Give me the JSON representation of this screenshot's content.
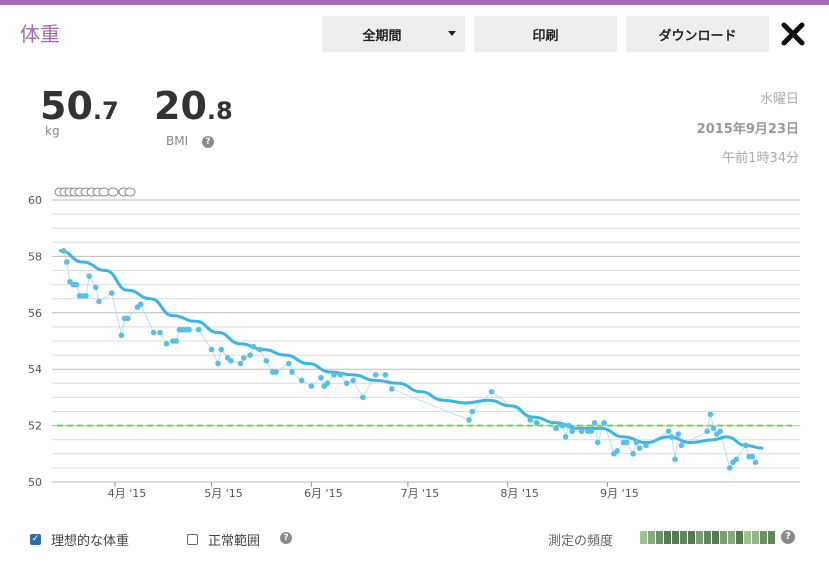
{
  "header": {
    "title": "体重",
    "period_label": "全期間",
    "print_label": "印刷",
    "download_label": "ダウンロード"
  },
  "metrics": {
    "weight_int": "50",
    "weight_dec": ".7",
    "weight_unit": "kg",
    "bmi_int": "20",
    "bmi_dec": ".8",
    "bmi_label": "BMI"
  },
  "date": {
    "weekday": "水曜日",
    "date": "2015年9月23日",
    "time": "午前1時34分"
  },
  "colors": {
    "accent": "#a36bb7",
    "trend": "#3db4e6",
    "points": "#55c0ea",
    "ideal_line": "#7dcf5a"
  },
  "chart_data": {
    "type": "line",
    "ylim": [
      50,
      60
    ],
    "yticks": [
      "60",
      "58",
      "56",
      "54",
      "52",
      "50"
    ],
    "months": [
      "4月 '15",
      "5月 '15",
      "6月 '15",
      "7月 '15",
      "8月 '15",
      "9月 '15"
    ],
    "ideal_weight": 52,
    "measurements": [
      [
        "2015-03-16",
        58.2
      ],
      [
        "2015-03-17",
        57.8
      ],
      [
        "2015-03-18",
        57.1
      ],
      [
        "2015-03-19",
        57.0
      ],
      [
        "2015-03-20",
        57.0
      ],
      [
        "2015-03-21",
        56.6
      ],
      [
        "2015-03-22",
        56.6
      ],
      [
        "2015-03-23",
        56.6
      ],
      [
        "2015-03-24",
        57.3
      ],
      [
        "2015-03-26",
        56.9
      ],
      [
        "2015-03-27",
        56.4
      ],
      [
        "2015-03-31",
        56.7
      ],
      [
        "2015-04-03",
        55.2
      ],
      [
        "2015-04-04",
        55.8
      ],
      [
        "2015-04-05",
        55.8
      ],
      [
        "2015-04-08",
        56.2
      ],
      [
        "2015-04-09",
        56.3
      ],
      [
        "2015-04-13",
        55.3
      ],
      [
        "2015-04-15",
        55.3
      ],
      [
        "2015-04-17",
        54.9
      ],
      [
        "2015-04-19",
        55.0
      ],
      [
        "2015-04-20",
        55.0
      ],
      [
        "2015-04-21",
        55.4
      ],
      [
        "2015-04-22",
        55.4
      ],
      [
        "2015-04-23",
        55.4
      ],
      [
        "2015-04-24",
        55.4
      ],
      [
        "2015-04-27",
        55.4
      ],
      [
        "2015-05-01",
        54.7
      ],
      [
        "2015-05-03",
        54.2
      ],
      [
        "2015-05-04",
        54.7
      ],
      [
        "2015-05-06",
        54.4
      ],
      [
        "2015-05-07",
        54.3
      ],
      [
        "2015-05-10",
        54.2
      ],
      [
        "2015-05-11",
        54.4
      ],
      [
        "2015-05-13",
        54.5
      ],
      [
        "2015-05-14",
        54.8
      ],
      [
        "2015-05-16",
        54.7
      ],
      [
        "2015-05-18",
        54.3
      ],
      [
        "2015-05-20",
        53.9
      ],
      [
        "2015-05-21",
        53.9
      ],
      [
        "2015-05-25",
        54.2
      ],
      [
        "2015-05-26",
        53.9
      ],
      [
        "2015-05-29",
        53.6
      ],
      [
        "2015-06-01",
        53.4
      ],
      [
        "2015-06-04",
        53.7
      ],
      [
        "2015-06-05",
        53.4
      ],
      [
        "2015-06-06",
        53.5
      ],
      [
        "2015-06-08",
        53.8
      ],
      [
        "2015-06-10",
        53.8
      ],
      [
        "2015-06-12",
        53.5
      ],
      [
        "2015-06-14",
        53.6
      ],
      [
        "2015-06-17",
        53.0
      ],
      [
        "2015-06-21",
        53.8
      ],
      [
        "2015-06-24",
        53.8
      ],
      [
        "2015-06-26",
        53.3
      ],
      [
        "2015-07-20",
        52.2
      ],
      [
        "2015-07-21",
        52.5
      ],
      [
        "2015-07-27",
        53.2
      ],
      [
        "2015-08-08",
        52.2
      ],
      [
        "2015-08-10",
        52.1
      ],
      [
        "2015-08-16",
        51.9
      ],
      [
        "2015-08-18",
        52.0
      ],
      [
        "2015-08-19",
        51.6
      ],
      [
        "2015-08-20",
        52.0
      ],
      [
        "2015-08-21",
        51.8
      ],
      [
        "2015-08-24",
        51.8
      ],
      [
        "2015-08-26",
        51.8
      ],
      [
        "2015-08-27",
        51.8
      ],
      [
        "2015-08-28",
        52.1
      ],
      [
        "2015-08-29",
        51.4
      ],
      [
        "2015-08-31",
        52.1
      ],
      [
        "2015-09-03",
        51.0
      ],
      [
        "2015-09-04",
        51.1
      ],
      [
        "2015-09-06",
        51.4
      ],
      [
        "2015-09-07",
        51.4
      ],
      [
        "2015-09-09",
        51.0
      ],
      [
        "2015-09-10",
        51.4
      ],
      [
        "2015-09-11",
        51.2
      ],
      [
        "2015-09-13",
        51.3
      ],
      [
        "2015-09-20",
        51.8
      ],
      [
        "2015-09-21",
        51.6
      ],
      [
        "2015-09-22",
        50.8
      ],
      [
        "2015-09-23",
        51.7
      ],
      [
        "2015-09-24",
        51.3
      ],
      [
        "2015-10-02",
        51.8
      ],
      [
        "2015-10-03",
        52.4
      ],
      [
        "2015-10-04",
        51.9
      ],
      [
        "2015-10-05",
        51.7
      ],
      [
        "2015-10-06",
        51.8
      ],
      [
        "2015-10-09",
        50.5
      ],
      [
        "2015-10-10",
        50.7
      ],
      [
        "2015-10-11",
        50.8
      ],
      [
        "2015-10-14",
        51.3
      ],
      [
        "2015-10-15",
        50.9
      ],
      [
        "2015-10-16",
        50.9
      ],
      [
        "2015-10-17",
        50.7
      ]
    ],
    "trend": [
      [
        "2015-03-15",
        58.2
      ],
      [
        "2015-03-22",
        57.8
      ],
      [
        "2015-03-29",
        57.5
      ],
      [
        "2015-04-05",
        56.8
      ],
      [
        "2015-04-12",
        56.5
      ],
      [
        "2015-04-19",
        55.9
      ],
      [
        "2015-04-26",
        55.7
      ],
      [
        "2015-05-03",
        55.3
      ],
      [
        "2015-05-10",
        54.9
      ],
      [
        "2015-05-17",
        54.7
      ],
      [
        "2015-05-24",
        54.5
      ],
      [
        "2015-05-31",
        54.2
      ],
      [
        "2015-06-07",
        53.9
      ],
      [
        "2015-06-14",
        53.8
      ],
      [
        "2015-06-21",
        53.6
      ],
      [
        "2015-06-28",
        53.5
      ],
      [
        "2015-07-05",
        53.2
      ],
      [
        "2015-07-12",
        52.9
      ],
      [
        "2015-07-19",
        52.8
      ],
      [
        "2015-07-26",
        52.9
      ],
      [
        "2015-08-02",
        52.7
      ],
      [
        "2015-08-09",
        52.3
      ],
      [
        "2015-08-16",
        52.1
      ],
      [
        "2015-08-23",
        51.9
      ],
      [
        "2015-08-30",
        51.9
      ],
      [
        "2015-09-06",
        51.6
      ],
      [
        "2015-09-13",
        51.4
      ],
      [
        "2015-09-20",
        51.6
      ],
      [
        "2015-09-27",
        51.4
      ],
      [
        "2015-10-04",
        51.5
      ],
      [
        "2015-10-08",
        51.6
      ],
      [
        "2015-10-14",
        51.3
      ],
      [
        "2015-10-19",
        51.2
      ]
    ]
  },
  "legend": {
    "ideal_label": "理想的な体重",
    "normal_label": "正常範囲",
    "freq_label": "測定の頻度",
    "freq_levels": [
      0.3,
      0.5,
      0.7,
      0.9,
      0.9,
      0.8,
      0.9,
      0.6,
      0.8,
      0.9,
      0.6,
      0.5,
      0.9,
      0.3,
      0.4,
      0.7,
      0.8
    ]
  }
}
